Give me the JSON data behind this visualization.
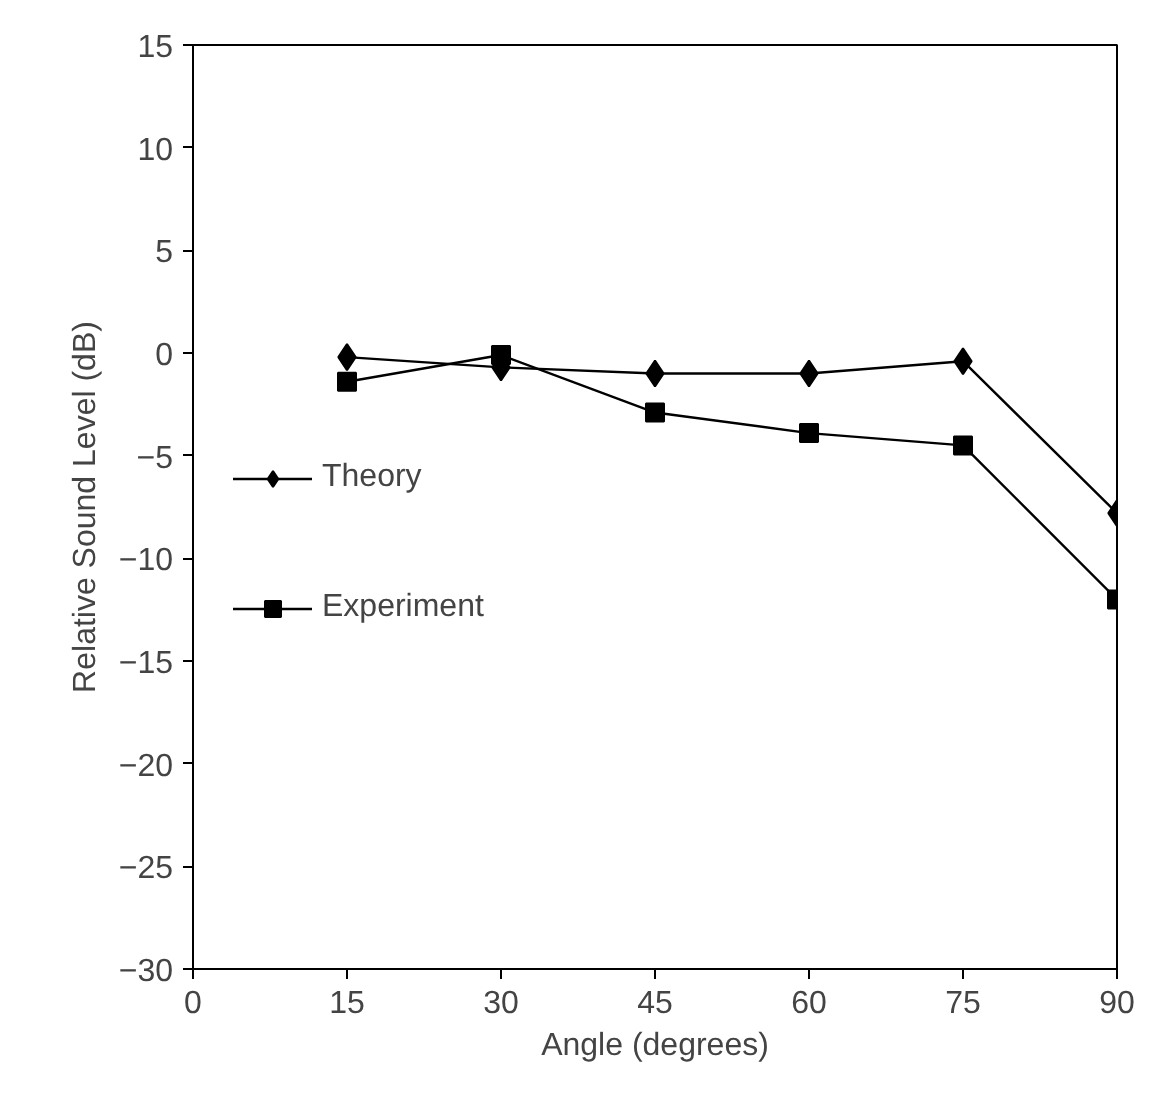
{
  "chart_data": {
    "type": "line",
    "xlabel": "Angle (degrees)",
    "ylabel": "Relative Sound Level (dB)",
    "x": [
      15,
      30,
      45,
      60,
      75,
      90
    ],
    "series": [
      {
        "name": "Theory",
        "color": "#000000",
        "marker": "diamond",
        "values": [
          -0.2,
          -0.7,
          -1.0,
          -1.0,
          -0.4,
          -7.8
        ]
      },
      {
        "name": "Experiment",
        "color": "#000000",
        "marker": "square",
        "values": [
          -1.4,
          -0.1,
          -2.9,
          -3.9,
          -4.5,
          -12.0
        ]
      }
    ],
    "xlim": [
      0,
      90
    ],
    "xticks": [
      0,
      15,
      30,
      45,
      60,
      75,
      90
    ],
    "ylim": [
      -30,
      15
    ],
    "yticks": [
      -30,
      -25,
      -20,
      -15,
      -10,
      -5,
      0,
      5,
      10,
      15
    ],
    "grid": false,
    "legend": "left",
    "line_style": "solid"
  }
}
